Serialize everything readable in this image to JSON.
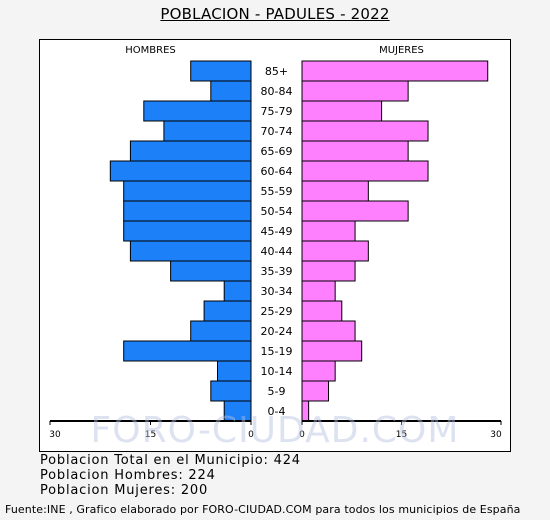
{
  "title": "POBLACION - PADULES - 2022",
  "watermark": "FORO-CIUDAD.COM",
  "chart_data": {
    "type": "bar",
    "orientation": "horizontal-pyramid",
    "categories": [
      "85+",
      "80-84",
      "75-79",
      "70-74",
      "65-69",
      "60-64",
      "55-59",
      "50-54",
      "45-49",
      "40-44",
      "35-39",
      "30-34",
      "25-29",
      "20-24",
      "15-19",
      "10-14",
      "5-9",
      "0-4"
    ],
    "series": [
      {
        "name": "HOMBRES",
        "color": "#1c80f8",
        "values": [
          9,
          6,
          16,
          13,
          18,
          21,
          19,
          19,
          19,
          18,
          12,
          4,
          7,
          9,
          19,
          5,
          6,
          4
        ]
      },
      {
        "name": "MUJERES",
        "color": "#ff80ff",
        "values": [
          28,
          16,
          12,
          19,
          16,
          19,
          10,
          16,
          8,
          10,
          8,
          5,
          6,
          8,
          9,
          5,
          4,
          1
        ]
      }
    ],
    "xlim": [
      0,
      30
    ],
    "x_ticks_left": [
      "30",
      "15",
      "0"
    ],
    "x_ticks_right": [
      "0",
      "15",
      "30"
    ],
    "grid": false
  },
  "stats": {
    "total": "Poblacion Total en el Municipio: 424",
    "hombres": "Poblacion Hombres: 224",
    "mujeres": "Poblacion Mujeres: 200"
  },
  "footer": "Fuente:INE , Grafico elaborado por FORO-CIUDAD.COM para todos los municipios de España"
}
